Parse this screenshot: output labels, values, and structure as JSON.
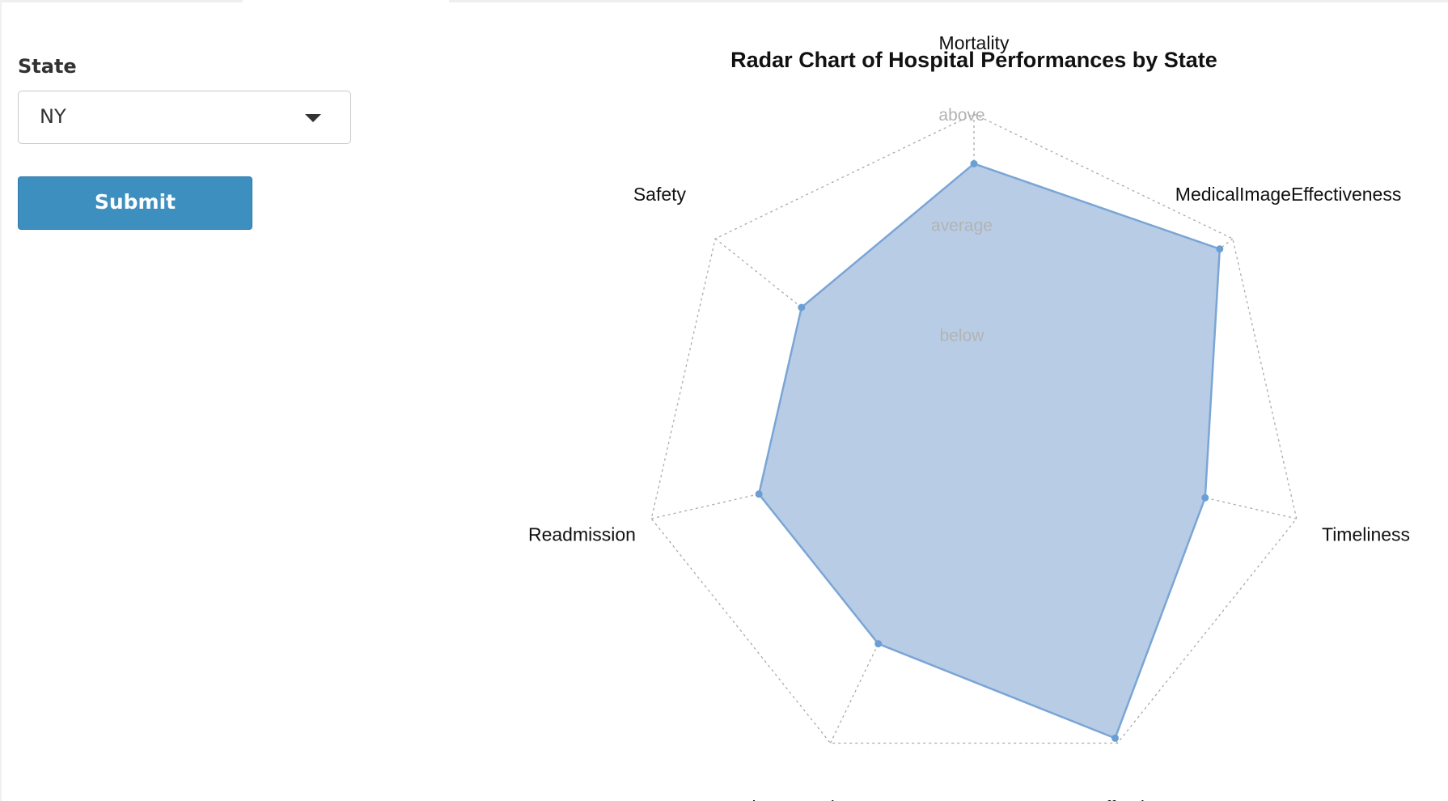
{
  "controls": {
    "state_label": "State",
    "state_value": "NY",
    "submit_label": "Submit"
  },
  "chart_data": {
    "type": "radar",
    "title": "Radar Chart of Hospital Performances by State",
    "axes": [
      "Mortality",
      "MedicalImageEffectiveness",
      "Timeliness",
      "Effectiveness",
      "PatientExperience",
      "Readmission",
      "Safety"
    ],
    "levels": [
      "below",
      "average",
      "above"
    ],
    "range": [
      0,
      3
    ],
    "series": [
      {
        "values": [
          2.55,
          2.85,
          2.15,
          2.95,
          2.0,
          2.0,
          2.0
        ],
        "color": "#6b9fd4"
      }
    ],
    "fill_color": "#b8cde5",
    "line_color": "#7aa5d6",
    "grid": true
  }
}
